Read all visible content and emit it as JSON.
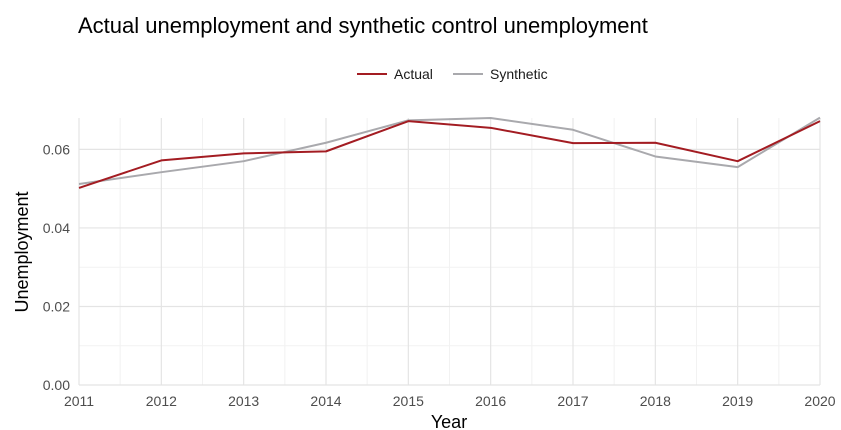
{
  "chart_data": {
    "type": "line",
    "title": "Actual unemployment and synthetic control unemployment",
    "xlabel": "Year",
    "ylabel": "Unemployment",
    "x": [
      2011,
      2012,
      2013,
      2014,
      2015,
      2016,
      2017,
      2018,
      2019,
      2020
    ],
    "xticks": [
      "2011",
      "2012",
      "2013",
      "2014",
      "2015",
      "2016",
      "2017",
      "2018",
      "2019",
      "2020"
    ],
    "yticks": [
      "0.00",
      "0.02",
      "0.04",
      "0.06"
    ],
    "ylim": [
      0,
      0.068
    ],
    "grid": true,
    "legend_position": "top",
    "series": [
      {
        "name": "Actual",
        "color": "#a31c22",
        "values": [
          0.0502,
          0.0572,
          0.059,
          0.0595,
          0.0672,
          0.0655,
          0.0616,
          0.0617,
          0.057,
          0.0672
        ]
      },
      {
        "name": "Synthetic",
        "color": "#a9a9ad",
        "values": [
          0.0512,
          0.0542,
          0.057,
          0.0617,
          0.0674,
          0.068,
          0.065,
          0.0582,
          0.0555,
          0.0681
        ]
      }
    ]
  }
}
